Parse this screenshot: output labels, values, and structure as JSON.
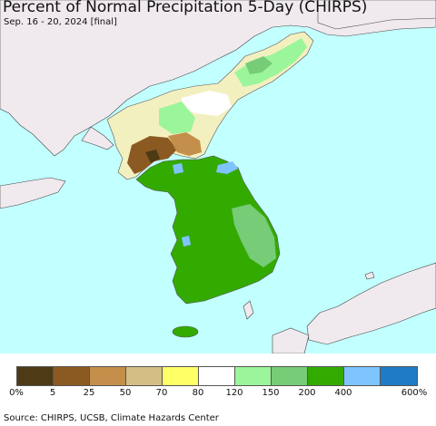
{
  "header": {
    "title": "Percent of Normal Precipitation 5-Day (CHIRPS)",
    "subtitle": "Sep. 16 - 20, 2024 [final]"
  },
  "legend": {
    "colors": [
      "#4f3a16",
      "#8b5a22",
      "#c48f4a",
      "#d4be86",
      "#ffff66",
      "#ffffff",
      "#9bf59b",
      "#77cc77",
      "#33aa00",
      "#7fc4ff",
      "#1f7cc4"
    ],
    "labels": [
      "0%",
      "5",
      "25",
      "50",
      "70",
      "80",
      "120",
      "150",
      "200",
      "400",
      "600%"
    ]
  },
  "map": {
    "ocean_color": "#c2ffff",
    "land_color": "#f0eaee",
    "lake_color": "#c2ffff"
  },
  "footer": {
    "source": "Source: CHIRPS, UCSB, Climate Hazards Center"
  }
}
